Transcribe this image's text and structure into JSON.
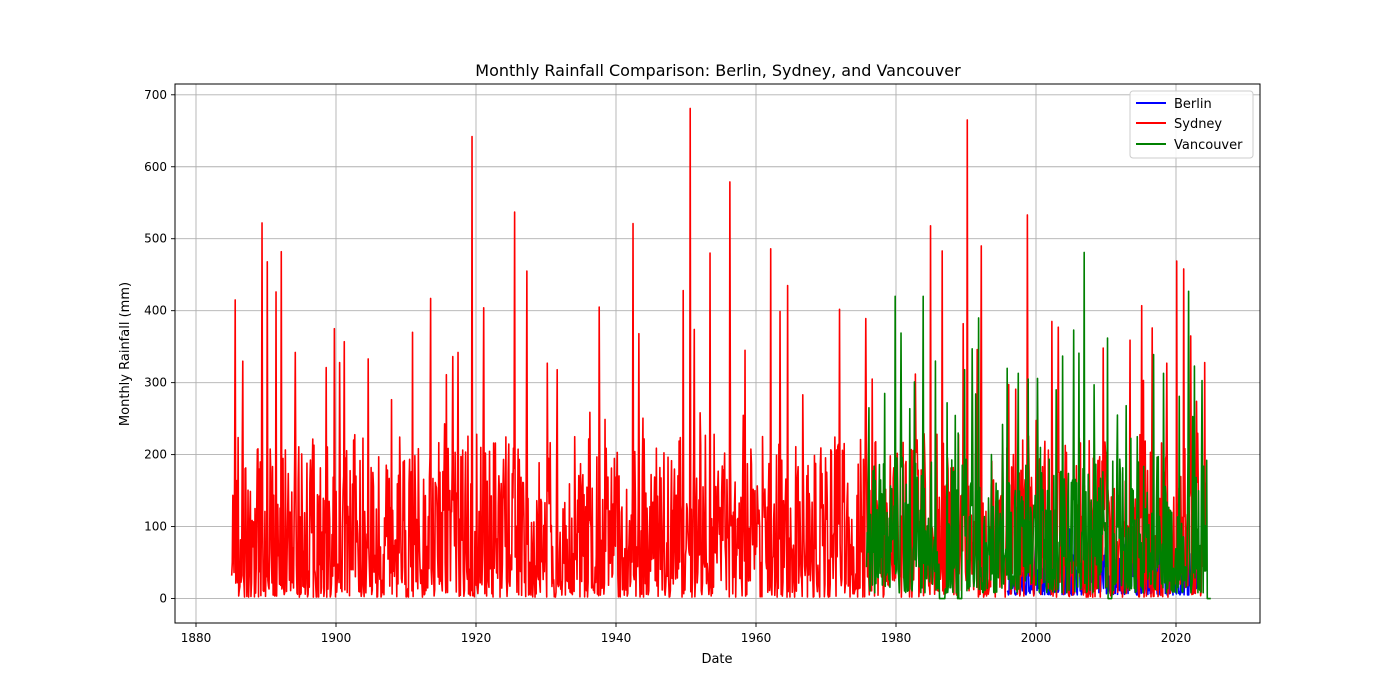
{
  "chart_data": {
    "type": "line",
    "title": "Monthly Rainfall Comparison: Berlin, Sydney, and Vancouver",
    "xlabel": "Date",
    "ylabel": "Monthly Rainfall (mm)",
    "xlim": [
      1877,
      2032
    ],
    "ylim": [
      -34,
      715
    ],
    "x_ticks": [
      1880,
      1900,
      1920,
      1940,
      1960,
      1980,
      2000,
      2020
    ],
    "x_tick_labels": [
      "1880",
      "1900",
      "1920",
      "1940",
      "1960",
      "1980",
      "2000",
      "2020"
    ],
    "y_ticks": [
      0,
      100,
      200,
      300,
      400,
      500,
      600,
      700
    ],
    "y_tick_labels": [
      "0",
      "100",
      "200",
      "300",
      "400",
      "500",
      "600",
      "700"
    ],
    "grid": true,
    "legend_position": "top-right",
    "series": [
      {
        "name": "Berlin",
        "color": "#0000ff",
        "start_year": 1995.9,
        "end_year": 2023.6,
        "typical_low": 5,
        "typical_high": 75,
        "peaks": [
          [
            2005.5,
            145
          ],
          [
            2008.9,
            125
          ],
          [
            2016.7,
            110
          ],
          [
            2021.3,
            95
          ]
        ]
      },
      {
        "name": "Sydney",
        "color": "#ff0000",
        "start_year": 1885.1,
        "end_year": 2024.3,
        "typical_low": 2,
        "typical_high": 230,
        "peaks": [
          [
            1885.6,
            415
          ],
          [
            1889.4,
            522
          ],
          [
            1890.2,
            468
          ],
          [
            1891.4,
            426
          ],
          [
            1892.2,
            482
          ],
          [
            1894.2,
            342
          ],
          [
            1899.8,
            375
          ],
          [
            1900.5,
            328
          ],
          [
            1901.2,
            357
          ],
          [
            1904.6,
            333
          ],
          [
            1910.9,
            370
          ],
          [
            1913.5,
            417
          ],
          [
            1915.8,
            311
          ],
          [
            1917.4,
            342
          ],
          [
            1919.4,
            642
          ],
          [
            1921.1,
            404
          ],
          [
            1925.5,
            537
          ],
          [
            1927.3,
            455
          ],
          [
            1930.2,
            327
          ],
          [
            1931.6,
            318
          ],
          [
            1937.6,
            405
          ],
          [
            1942.4,
            521
          ],
          [
            1943.3,
            368
          ],
          [
            1949.6,
            428
          ],
          [
            1950.6,
            681
          ],
          [
            1951.2,
            374
          ],
          [
            1953.4,
            480
          ],
          [
            1956.3,
            579
          ],
          [
            1958.4,
            345
          ],
          [
            1962.1,
            486
          ],
          [
            1963.4,
            399
          ],
          [
            1964.5,
            435
          ],
          [
            1971.9,
            402
          ],
          [
            1975.7,
            389
          ],
          [
            1976.6,
            305
          ],
          [
            1982.8,
            312
          ],
          [
            1984.9,
            518
          ],
          [
            1986.6,
            483
          ],
          [
            1989.6,
            382
          ],
          [
            1990.2,
            665
          ],
          [
            1991.6,
            346
          ],
          [
            1992.2,
            490
          ],
          [
            1997.1,
            291
          ],
          [
            1998.8,
            533
          ],
          [
            2002.3,
            385
          ],
          [
            2003.2,
            377
          ],
          [
            2009.6,
            348
          ],
          [
            2013.4,
            359
          ],
          [
            2015.1,
            407
          ],
          [
            2016.6,
            376
          ],
          [
            2018.7,
            327
          ],
          [
            2020.1,
            469
          ],
          [
            2021.1,
            458
          ],
          [
            2022.1,
            365
          ],
          [
            2022.9,
            274
          ],
          [
            2024.1,
            328
          ]
        ]
      },
      {
        "name": "Vancouver",
        "color": "#008000",
        "start_year": 1975.8,
        "end_year": 2025.0,
        "typical_low": 8,
        "typical_high": 200,
        "peaks": [
          [
            1978.4,
            285
          ],
          [
            1979.9,
            420
          ],
          [
            1980.7,
            369
          ],
          [
            1982.6,
            301
          ],
          [
            1983.9,
            420
          ],
          [
            1985.6,
            330
          ],
          [
            1987.3,
            272
          ],
          [
            1988.9,
            230
          ],
          [
            1989.8,
            318
          ],
          [
            1990.9,
            347
          ],
          [
            1991.8,
            390
          ],
          [
            1993.6,
            200
          ],
          [
            1995.2,
            242
          ],
          [
            1995.9,
            320
          ],
          [
            1997.5,
            313
          ],
          [
            1998.9,
            305
          ],
          [
            2000.6,
            210
          ],
          [
            2002.9,
            290
          ],
          [
            2003.8,
            337
          ],
          [
            2005.4,
            373
          ],
          [
            2006.1,
            341
          ],
          [
            2006.9,
            481
          ],
          [
            2008.3,
            297
          ],
          [
            2010.2,
            362
          ],
          [
            2011.6,
            255
          ],
          [
            2012.9,
            268
          ],
          [
            2014.5,
            225
          ],
          [
            2016.8,
            339
          ],
          [
            2018.2,
            313
          ],
          [
            2020.5,
            281
          ],
          [
            2021.8,
            427
          ],
          [
            2022.6,
            323
          ],
          [
            2023.7,
            303
          ]
        ],
        "zero_runs": [
          [
            1986.2,
            1987.0
          ],
          [
            1988.8,
            1989.4
          ],
          [
            2010.3,
            2010.8
          ],
          [
            2024.4,
            2025.0
          ]
        ]
      }
    ]
  }
}
